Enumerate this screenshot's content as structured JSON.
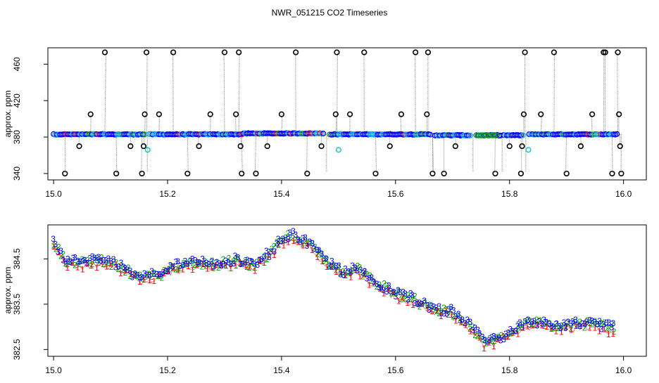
{
  "title": "NWR_051215  CO2 Timeseries",
  "colors": {
    "frame": "#000000",
    "good": "#0000ff",
    "good_outline": "#00aaff",
    "alt_green": "#00a000",
    "alt_red": "#ff0000",
    "flagged": "#000000",
    "cyan": "#22cccc",
    "drop": "#888888"
  },
  "chart_data": [
    {
      "type": "scatter",
      "title": "NWR_051215  CO2 Timeseries",
      "xlabel": "",
      "ylabel": "approx. ppm",
      "xlim": [
        14.99,
        16.04
      ],
      "ylim": [
        333,
        478
      ],
      "xticks": [
        15.0,
        15.2,
        15.4,
        15.6,
        15.8,
        16.0
      ],
      "xtick_labels": [
        "15.0",
        "15.2",
        "15.4",
        "15.6",
        "15.8",
        "16.0"
      ],
      "yticks": [
        340,
        380,
        420,
        460
      ],
      "ytick_labels": [
        "340",
        "380",
        "420",
        "460"
      ],
      "grid": false,
      "baseline": [
        [
          15.0,
          383
        ],
        [
          15.16,
          383
        ],
        [
          15.165,
          383
        ],
        [
          15.33,
          383
        ],
        [
          15.335,
          384
        ],
        [
          15.475,
          384
        ],
        [
          15.48,
          383
        ],
        [
          15.66,
          383
        ],
        [
          15.665,
          382
        ],
        [
          15.72,
          382
        ],
        [
          15.74,
          382
        ],
        [
          15.78,
          382
        ],
        [
          15.825,
          382
        ],
        [
          15.83,
          383
        ],
        [
          15.99,
          383
        ]
      ],
      "gaps": [
        [
          15.162,
          15.167
        ],
        [
          15.476,
          15.482
        ],
        [
          15.662,
          15.668
        ],
        [
          15.731,
          15.741
        ],
        [
          15.785,
          15.789
        ],
        [
          15.825,
          15.832
        ]
      ],
      "outliers": [
        [
          15.02,
          340
        ],
        [
          15.045,
          370
        ],
        [
          15.065,
          405
        ],
        [
          15.09,
          473
        ],
        [
          15.11,
          340
        ],
        [
          15.135,
          370
        ],
        [
          15.155,
          340
        ],
        [
          15.158,
          370
        ],
        [
          15.16,
          405
        ],
        [
          15.163,
          473
        ],
        [
          15.185,
          405
        ],
        [
          15.21,
          473
        ],
        [
          15.235,
          340
        ],
        [
          15.255,
          370
        ],
        [
          15.275,
          405
        ],
        [
          15.3,
          473
        ],
        [
          15.32,
          405
        ],
        [
          15.325,
          473
        ],
        [
          15.328,
          370
        ],
        [
          15.33,
          340
        ],
        [
          15.355,
          340
        ],
        [
          15.375,
          370
        ],
        [
          15.4,
          405
        ],
        [
          15.425,
          473
        ],
        [
          15.445,
          340
        ],
        [
          15.47,
          370
        ],
        [
          15.495,
          405
        ],
        [
          15.497,
          473
        ],
        [
          15.52,
          405
        ],
        [
          15.545,
          473
        ],
        [
          15.565,
          340
        ],
        [
          15.59,
          370
        ],
        [
          15.61,
          405
        ],
        [
          15.635,
          473
        ],
        [
          15.655,
          405
        ],
        [
          15.657,
          473
        ],
        [
          15.665,
          340
        ],
        [
          15.685,
          340
        ],
        [
          15.705,
          370
        ],
        [
          15.775,
          340
        ],
        [
          15.8,
          370
        ],
        [
          15.82,
          340
        ],
        [
          15.822,
          370
        ],
        [
          15.825,
          405
        ],
        [
          15.827,
          473
        ],
        [
          15.855,
          405
        ],
        [
          15.878,
          473
        ],
        [
          15.9,
          340
        ],
        [
          15.925,
          370
        ],
        [
          15.945,
          405
        ],
        [
          15.965,
          473
        ],
        [
          15.968,
          473
        ],
        [
          15.98,
          340
        ],
        [
          15.99,
          473
        ],
        [
          15.992,
          405
        ],
        [
          15.994,
          370
        ],
        [
          15.996,
          340
        ]
      ],
      "cyan_points": [
        [
          15.165,
          366
        ],
        [
          15.5,
          366
        ],
        [
          15.833,
          366
        ]
      ]
    },
    {
      "type": "scatter",
      "xlabel": "",
      "ylabel": "approx. ppm",
      "xlim": [
        14.99,
        16.04
      ],
      "ylim": [
        382.35,
        385.25
      ],
      "xticks": [
        15.0,
        15.2,
        15.4,
        15.6,
        15.8,
        16.0
      ],
      "xtick_labels": [
        "15.0",
        "15.2",
        "15.4",
        "15.6",
        "15.8",
        "16.0"
      ],
      "yticks": [
        382.5,
        383.5,
        384.5
      ],
      "ytick_labels": [
        "382.5",
        "383.5",
        "384.5"
      ],
      "grid": false,
      "marker_labels": [
        "1",
        "2",
        "3"
      ],
      "trend": [
        [
          15.0,
          384.85
        ],
        [
          15.02,
          384.45
        ],
        [
          15.05,
          384.4
        ],
        [
          15.08,
          384.45
        ],
        [
          15.11,
          384.35
        ],
        [
          15.15,
          384.05
        ],
        [
          15.19,
          384.15
        ],
        [
          15.22,
          384.35
        ],
        [
          15.25,
          384.4
        ],
        [
          15.28,
          384.35
        ],
        [
          15.32,
          384.45
        ],
        [
          15.35,
          384.35
        ],
        [
          15.38,
          384.6
        ],
        [
          15.4,
          384.9
        ],
        [
          15.42,
          385.0
        ],
        [
          15.45,
          384.8
        ],
        [
          15.48,
          384.4
        ],
        [
          15.51,
          384.15
        ],
        [
          15.53,
          384.3
        ],
        [
          15.56,
          384.0
        ],
        [
          15.6,
          383.7
        ],
        [
          15.63,
          383.6
        ],
        [
          15.66,
          383.4
        ],
        [
          15.7,
          383.3
        ],
        [
          15.73,
          383.0
        ],
        [
          15.755,
          382.65
        ],
        [
          15.78,
          382.7
        ],
        [
          15.8,
          382.85
        ],
        [
          15.83,
          383.05
        ],
        [
          15.86,
          383.05
        ],
        [
          15.9,
          383.0
        ],
        [
          15.93,
          383.05
        ],
        [
          15.96,
          383.0
        ],
        [
          15.985,
          382.95
        ]
      ]
    }
  ]
}
